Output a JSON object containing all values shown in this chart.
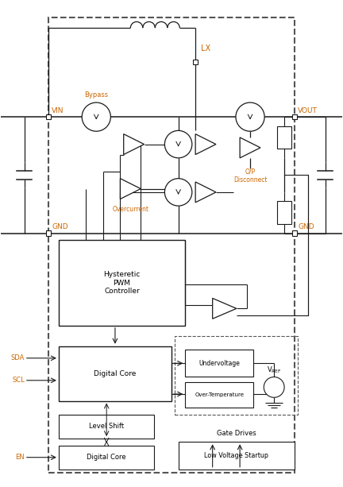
{
  "bg": "#ffffff",
  "lc": "#1a1a1a",
  "oc": "#cc6600",
  "dc": "#555555",
  "fig_w": 4.32,
  "fig_h": 6.13,
  "dpi": 100,
  "xlim": [
    0,
    100
  ],
  "ylim": [
    0,
    142
  ]
}
